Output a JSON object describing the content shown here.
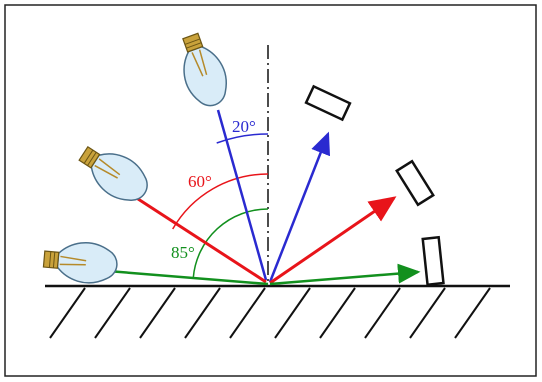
{
  "angles": [
    {
      "label": "20°"
    },
    {
      "label": "60°"
    },
    {
      "label": "85°"
    }
  ]
}
